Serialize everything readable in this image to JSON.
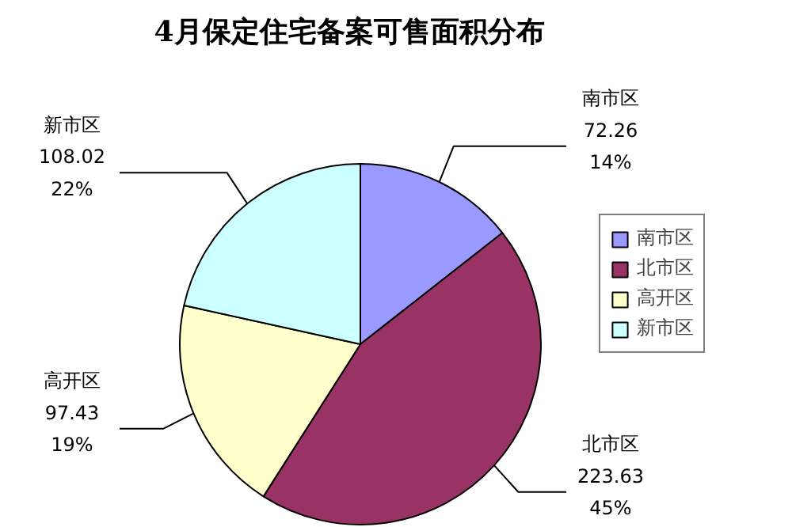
{
  "chart_data": {
    "type": "pie",
    "title": "4月保定住宅备案可售面积分布",
    "categories": [
      "南市区",
      "北市区",
      "高开区",
      "新市区"
    ],
    "values": [
      72.26,
      223.63,
      97.43,
      108.02
    ],
    "colors": [
      "#9999ff",
      "#993366",
      "#ffffcc",
      "#ccffff"
    ],
    "value_labels": [
      "72.26\n14%",
      "223.63\n45%",
      "97.43\n19%",
      "108.02\n22%"
    ],
    "legend": "right"
  }
}
